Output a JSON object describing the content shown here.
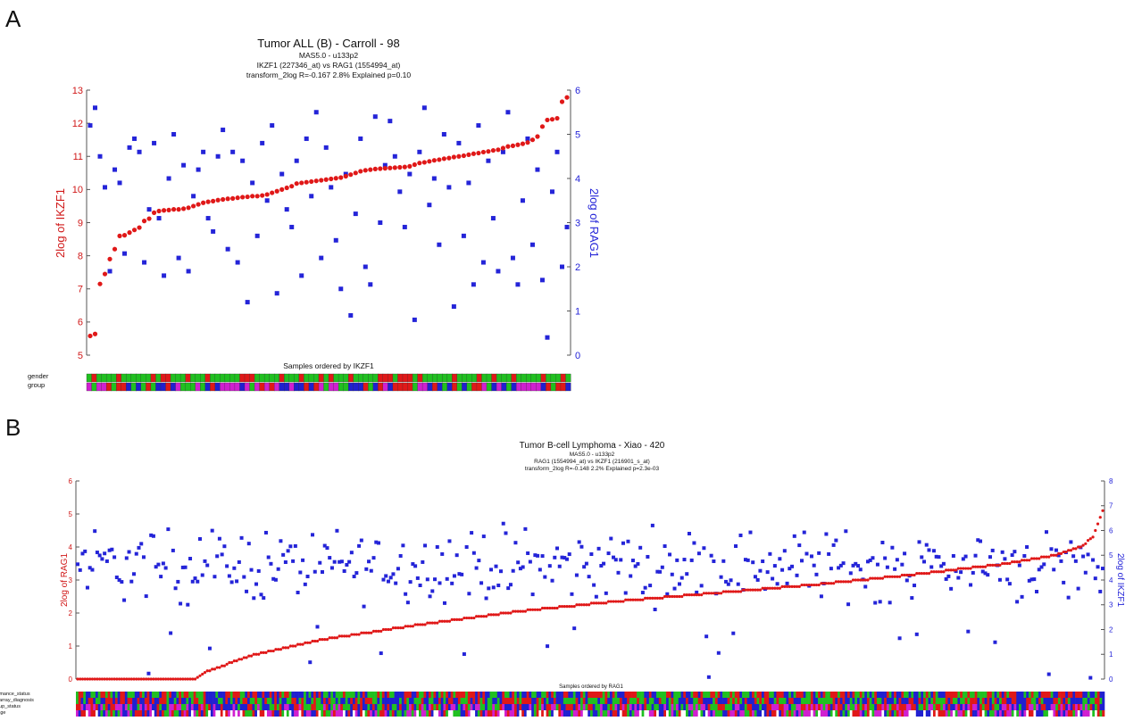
{
  "figure": {
    "panel_a_letter": "A",
    "panel_b_letter": "B"
  },
  "chart_data": [
    {
      "type": "scatter",
      "title": "Tumor ALL (B) - Carroll - 98",
      "subtitle_lines": [
        "MAS5.0 - u133p2",
        "IKZF1 (227346_at) vs RAG1 (1554994_at)",
        "transform_2log R=-0.167 2.8% Explained p=0.10"
      ],
      "xlabel": "Samples ordered by IKZF1",
      "ylabel_left": "2log of IKZF1",
      "ylabel_right": "2log of RAG1",
      "ylim_left": [
        5,
        13
      ],
      "ylim_right": [
        0,
        6
      ],
      "yticks_left": [
        "5",
        "6",
        "7",
        "8",
        "9",
        "10",
        "11",
        "12",
        "13"
      ],
      "yticks_right": [
        "0",
        "1",
        "2",
        "3",
        "4",
        "5",
        "6"
      ],
      "n_samples": 98,
      "colors": {
        "left_series": "#e01818",
        "right_series": "#2424d8"
      },
      "series": [
        {
          "axis": "left",
          "values": [
            5.58,
            5.64,
            7.15,
            7.45,
            7.9,
            8.2,
            8.6,
            8.62,
            8.7,
            8.78,
            8.85,
            9.05,
            9.12,
            9.3,
            9.35,
            9.37,
            9.38,
            9.4,
            9.4,
            9.42,
            9.45,
            9.5,
            9.55,
            9.6,
            9.63,
            9.65,
            9.68,
            9.7,
            9.72,
            9.73,
            9.75,
            9.77,
            9.78,
            9.8,
            9.8,
            9.82,
            9.85,
            9.9,
            9.95,
            10.0,
            10.05,
            10.1,
            10.18,
            10.2,
            10.22,
            10.24,
            10.26,
            10.28,
            10.3,
            10.32,
            10.34,
            10.36,
            10.4,
            10.45,
            10.5,
            10.55,
            10.58,
            10.6,
            10.62,
            10.63,
            10.64,
            10.65,
            10.66,
            10.67,
            10.68,
            10.7,
            10.75,
            10.8,
            10.82,
            10.85,
            10.88,
            10.9,
            10.93,
            10.95,
            10.98,
            11.0,
            11.02,
            11.05,
            11.08,
            11.1,
            11.13,
            11.15,
            11.18,
            11.2,
            11.25,
            11.3,
            11.32,
            11.35,
            11.38,
            11.42,
            11.5,
            11.6,
            11.9,
            12.1,
            12.12,
            12.15,
            12.65,
            12.78
          ]
        },
        {
          "axis": "right",
          "values": [
            5.2,
            5.6,
            4.5,
            3.8,
            1.9,
            4.2,
            3.9,
            2.3,
            4.7,
            4.9,
            4.6,
            2.1,
            3.3,
            4.8,
            3.1,
            1.8,
            4.0,
            5.0,
            2.2,
            4.3,
            1.9,
            3.6,
            4.2,
            4.6,
            3.1,
            2.8,
            4.5,
            5.1,
            2.4,
            4.6,
            2.1,
            4.4,
            1.2,
            3.9,
            2.7,
            4.8,
            3.5,
            5.2,
            1.4,
            4.1,
            3.3,
            2.9,
            4.4,
            1.8,
            4.9,
            3.6,
            5.5,
            2.2,
            4.7,
            3.8,
            2.6,
            1.5,
            4.1,
            0.9,
            3.2,
            4.9,
            2.0,
            1.6,
            5.4,
            3.0,
            4.3,
            5.3,
            4.5,
            3.7,
            2.9,
            4.1,
            0.8,
            4.6,
            5.6,
            3.4,
            4.0,
            2.5,
            5.0,
            3.8,
            1.1,
            4.8,
            2.7,
            3.9,
            1.6,
            5.2,
            2.1,
            4.4,
            3.1,
            1.9,
            4.6,
            5.5,
            2.2,
            1.6,
            3.5,
            4.9,
            2.5,
            4.2,
            1.7,
            0.4,
            3.7,
            4.6,
            2.0,
            2.9
          ]
        }
      ],
      "annotation_rows": [
        "gender",
        "group"
      ]
    },
    {
      "type": "scatter",
      "title": "Tumor B-cell Lymphoma - Xiao - 420",
      "subtitle_lines": [
        "MAS5.0 - u133p2",
        "RAG1 (1554994_at) vs IKZF1 (216901_s_at)",
        "transform_2log R=-0.148 2.2% Explained p=2.3e-03"
      ],
      "xlabel": "Samples ordered by RAG1",
      "ylabel_left": "2log of RAG1",
      "ylabel_right": "2log of IKZF1",
      "ylim_left": [
        0,
        6
      ],
      "ylim_right": [
        0,
        8
      ],
      "yticks_left": [
        "0",
        "1",
        "2",
        "3",
        "4",
        "5",
        "6"
      ],
      "yticks_right": [
        "0",
        "1",
        "2",
        "3",
        "4",
        "5",
        "6",
        "7",
        "8"
      ],
      "n_samples": 420,
      "colors": {
        "left_series": "#e01818",
        "right_series": "#2424d8"
      },
      "left_series_curve": {
        "description_points": [
          [
            0,
            0.0
          ],
          [
            48,
            0.0
          ],
          [
            52,
            0.2
          ],
          [
            70,
            0.7
          ],
          [
            100,
            1.2
          ],
          [
            140,
            1.65
          ],
          [
            180,
            2.05
          ],
          [
            220,
            2.35
          ],
          [
            260,
            2.6
          ],
          [
            300,
            2.85
          ],
          [
            340,
            3.15
          ],
          [
            380,
            3.5
          ],
          [
            400,
            3.75
          ],
          [
            410,
            4.0
          ],
          [
            415,
            4.3
          ],
          [
            419,
            5.1
          ]
        ]
      },
      "right_series_summary": {
        "center": 4.6,
        "spread": 1.3,
        "min": 0.0,
        "max": 7.1
      },
      "annotation_rows": [
        "ecog_performance_status",
        "initial_microarray_diagnosis",
        "follow_up_status",
        "stage"
      ]
    }
  ]
}
